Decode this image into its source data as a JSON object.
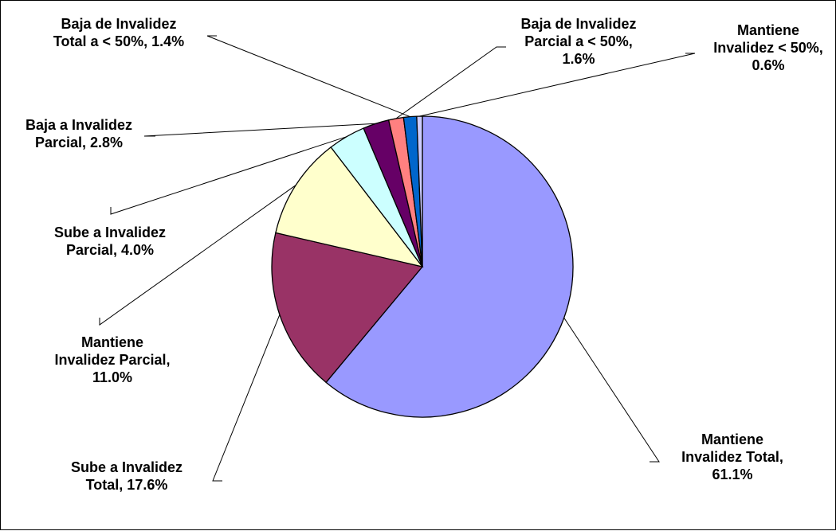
{
  "chart_data": {
    "type": "pie",
    "slices": [
      {
        "name": "Mantiene Invalidez Total",
        "value": 61.1,
        "label_lines": [
          "Mantiene",
          "Invalidez Total,",
          "61.1%"
        ],
        "color": "#9999FF"
      },
      {
        "name": "Sube a Invalidez Total",
        "value": 17.6,
        "label_lines": [
          "Sube a Invalidez",
          "Total, 17.6%"
        ],
        "color": "#993366"
      },
      {
        "name": "Mantiene Invalidez Parcial",
        "value": 11.0,
        "label_lines": [
          "Mantiene",
          "Invalidez Parcial,",
          "11.0%"
        ],
        "color": "#FFFFCC"
      },
      {
        "name": "Sube a Invalidez Parcial",
        "value": 4.0,
        "label_lines": [
          "Sube a Invalidez",
          "Parcial, 4.0%"
        ],
        "color": "#CCFFFF"
      },
      {
        "name": "Baja a Invalidez Parcial",
        "value": 2.8,
        "label_lines": [
          "Baja a Invalidez",
          "Parcial, 2.8%"
        ],
        "color": "#660066"
      },
      {
        "name": "Baja de Invalidez Parcial a < 50%",
        "value": 1.6,
        "label_lines": [
          "Baja de Invalidez",
          "Parcial a < 50%,",
          "1.6%"
        ],
        "color": "#FF8080"
      },
      {
        "name": "Baja de Invalidez Total a < 50%",
        "value": 1.4,
        "label_lines": [
          "Baja de Invalidez",
          "Total a < 50%, 1.4%"
        ],
        "color": "#0066CC"
      },
      {
        "name": "Mantiene Invalidez < 50%",
        "value": 0.6,
        "label_lines": [
          "Mantiene",
          "Invalidez < 50%,",
          "0.6%"
        ],
        "color": "#CCCCFF"
      }
    ]
  }
}
